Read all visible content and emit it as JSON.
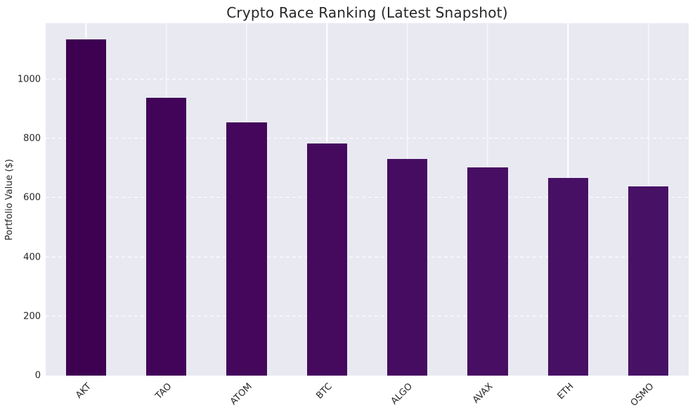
{
  "figure": {
    "title": "Crypto Race Ranking (Latest Snapshot)",
    "ylabel": "Portfolio Value ($)"
  },
  "chart_data": {
    "type": "bar",
    "title": "Crypto Race Ranking (Latest Snapshot)",
    "xlabel": "",
    "ylabel": "Portfolio Value ($)",
    "categories": [
      "AKT",
      "TAO",
      "ATOM",
      "BTC",
      "ALGO",
      "AVAX",
      "ETH",
      "OSMO"
    ],
    "values": [
      1135,
      938,
      855,
      785,
      732,
      702,
      667,
      638
    ],
    "bar_colors": [
      "#3e0152",
      "#420458",
      "#44075b",
      "#45095e",
      "#460c61",
      "#470e63",
      "#471065",
      "#471266"
    ],
    "ylim": [
      0,
      1190
    ],
    "yticks": [
      0,
      200,
      400,
      600,
      800,
      1000
    ],
    "grid": true,
    "legend": false,
    "x_tick_rotation_deg": 45,
    "styles": {
      "plot_bg": "#e9e9f2",
      "grid_color": "#ffffff",
      "tick_label_color": "#262626",
      "title_color": "#262626"
    }
  }
}
